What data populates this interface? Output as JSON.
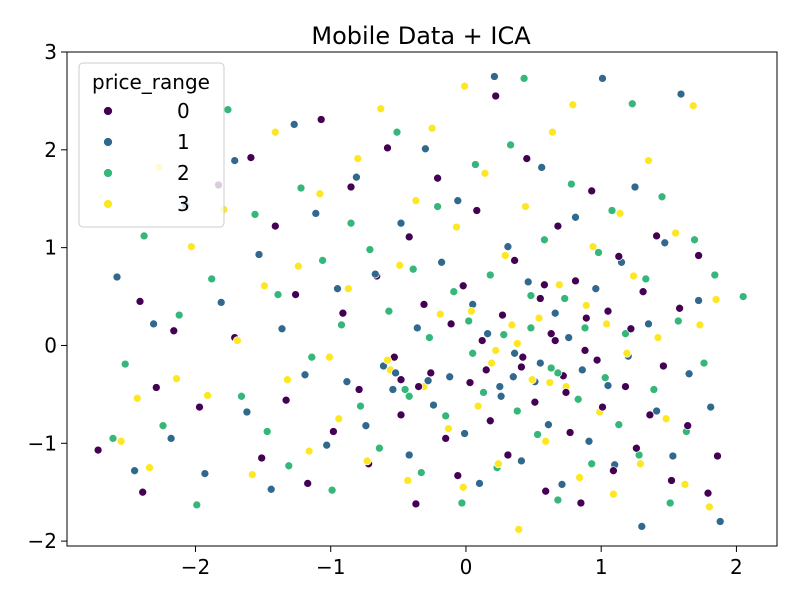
{
  "chart_data": {
    "type": "scatter",
    "title": "Mobile Data + ICA",
    "xlabel": "",
    "ylabel": "",
    "xlim": [
      -2.95,
      2.3
    ],
    "ylim": [
      -2.05,
      3.0
    ],
    "xticks": [
      -2,
      -1,
      0,
      1,
      2
    ],
    "yticks": [
      -2,
      -1,
      0,
      1,
      2,
      3
    ],
    "xtick_labels": [
      "−2",
      "−1",
      "0",
      "1",
      "2"
    ],
    "ytick_labels": [
      "−2",
      "−1",
      "0",
      "1",
      "2",
      "3"
    ],
    "grid": false,
    "legend": {
      "title": "price_range",
      "position": "top-left",
      "entries": [
        "0",
        "1",
        "2",
        "3"
      ]
    },
    "colors": {
      "0": "#440154",
      "1": "#31688e",
      "2": "#35b779",
      "3": "#fde725"
    },
    "series": [
      {
        "name": "0",
        "points": [
          [
            -2.72,
            -1.07
          ],
          [
            -2.41,
            0.45
          ],
          [
            -2.39,
            -1.5
          ],
          [
            -2.29,
            -0.43
          ],
          [
            -2.16,
            0.15
          ],
          [
            -1.97,
            -0.63
          ],
          [
            -1.83,
            1.64
          ],
          [
            -1.71,
            0.08
          ],
          [
            -1.59,
            1.92
          ],
          [
            -1.51,
            -1.15
          ],
          [
            -1.41,
            1.22
          ],
          [
            -1.33,
            -0.56
          ],
          [
            -1.26,
            0.52
          ],
          [
            -1.17,
            -1.41
          ],
          [
            -1.07,
            2.31
          ],
          [
            -0.98,
            -0.88
          ],
          [
            -0.91,
            0.33
          ],
          [
            -0.85,
            1.62
          ],
          [
            -0.79,
            -0.45
          ],
          [
            -0.72,
            -1.21
          ],
          [
            -0.66,
            0.71
          ],
          [
            -0.58,
            2.02
          ],
          [
            -0.53,
            -0.12
          ],
          [
            -0.48,
            -0.71
          ],
          [
            -0.42,
            1.11
          ],
          [
            -0.37,
            -1.62
          ],
          [
            -0.31,
            0.42
          ],
          [
            -0.26,
            -0.28
          ],
          [
            -0.21,
            1.71
          ],
          [
            -0.15,
            -0.95
          ],
          [
            -0.11,
            0.22
          ],
          [
            -0.06,
            -1.33
          ],
          [
            -0.02,
            0.61
          ],
          [
            0.03,
            -0.38
          ],
          [
            0.08,
            1.38
          ],
          [
            0.12,
            0.05
          ],
          [
            0.18,
            -0.77
          ],
          [
            0.22,
            2.55
          ],
          [
            0.27,
            0.31
          ],
          [
            0.31,
            -1.12
          ],
          [
            0.36,
            0.87
          ],
          [
            0.41,
            -0.22
          ],
          [
            0.45,
            1.91
          ],
          [
            0.51,
            -0.58
          ],
          [
            0.55,
            0.48
          ],
          [
            0.59,
            -1.49
          ],
          [
            0.63,
            0.12
          ],
          [
            0.68,
            1.22
          ],
          [
            0.72,
            -0.31
          ],
          [
            0.77,
            -0.89
          ],
          [
            0.81,
            0.66
          ],
          [
            0.85,
            -1.61
          ],
          [
            0.89,
            0.28
          ],
          [
            0.93,
            1.58
          ],
          [
            0.97,
            -0.15
          ],
          [
            1.01,
            -0.63
          ],
          [
            1.05,
            0.35
          ],
          [
            1.09,
            -1.28
          ],
          [
            1.13,
            0.91
          ],
          [
            1.18,
            -0.42
          ],
          [
            1.22,
            0.17
          ],
          [
            1.26,
            -1.05
          ],
          [
            1.31,
            0.55
          ],
          [
            1.36,
            -0.71
          ],
          [
            1.41,
            1.12
          ],
          [
            1.46,
            -0.21
          ],
          [
            1.52,
            -1.38
          ],
          [
            1.58,
            0.38
          ],
          [
            1.64,
            -0.82
          ],
          [
            1.72,
            0.92
          ],
          [
            1.79,
            -1.51
          ],
          [
            1.86,
            -1.13
          ],
          [
            0.58,
            0.62
          ],
          [
            0.66,
            0.05
          ],
          [
            0.74,
            -0.48
          ],
          [
            0.88,
            -0.05
          ],
          [
            -0.48,
            -0.35
          ],
          [
            -0.35,
            -0.42
          ],
          [
            0.15,
            -0.25
          ],
          [
            0.42,
            -0.12
          ]
        ]
      },
      {
        "name": "1",
        "points": [
          [
            -2.58,
            0.7
          ],
          [
            -2.45,
            -1.28
          ],
          [
            -2.31,
            0.22
          ],
          [
            -2.18,
            -0.95
          ],
          [
            -2.07,
            1.43
          ],
          [
            -1.93,
            -1.31
          ],
          [
            -1.81,
            0.44
          ],
          [
            -1.71,
            1.89
          ],
          [
            -1.62,
            -0.68
          ],
          [
            -1.53,
            0.93
          ],
          [
            -1.44,
            -1.47
          ],
          [
            -1.36,
            0.17
          ],
          [
            -1.27,
            2.26
          ],
          [
            -1.19,
            -0.3
          ],
          [
            -1.11,
            1.35
          ],
          [
            -1.03,
            -1.02
          ],
          [
            -0.95,
            0.58
          ],
          [
            -0.88,
            -0.37
          ],
          [
            -0.81,
            1.72
          ],
          [
            -0.74,
            -0.82
          ],
          [
            -0.67,
            0.73
          ],
          [
            -0.61,
            -0.21
          ],
          [
            -0.54,
            -0.45
          ],
          [
            -0.48,
            1.25
          ],
          [
            -0.42,
            -1.12
          ],
          [
            -0.36,
            0.18
          ],
          [
            -0.3,
            2.01
          ],
          [
            -0.24,
            -0.61
          ],
          [
            -0.18,
            0.85
          ],
          [
            -0.12,
            -0.32
          ],
          [
            -0.06,
            1.48
          ],
          [
            -0.01,
            -0.9
          ],
          [
            0.05,
            0.42
          ],
          [
            0.1,
            -1.41
          ],
          [
            0.16,
            0.12
          ],
          [
            0.21,
            2.75
          ],
          [
            0.26,
            -0.52
          ],
          [
            0.31,
            1.01
          ],
          [
            0.36,
            -0.08
          ],
          [
            0.41,
            -1.18
          ],
          [
            0.46,
            0.65
          ],
          [
            0.51,
            -0.37
          ],
          [
            0.56,
            1.82
          ],
          [
            0.61,
            -0.81
          ],
          [
            0.66,
            0.33
          ],
          [
            0.71,
            -1.42
          ],
          [
            0.76,
            0.08
          ],
          [
            0.81,
            1.31
          ],
          [
            0.86,
            -0.25
          ],
          [
            0.91,
            -0.98
          ],
          [
            0.96,
            0.58
          ],
          [
            1.01,
            2.73
          ],
          [
            1.05,
            -0.41
          ],
          [
            1.1,
            -1.22
          ],
          [
            1.15,
            0.85
          ],
          [
            1.2,
            -0.11
          ],
          [
            1.25,
            1.62
          ],
          [
            1.3,
            -1.85
          ],
          [
            1.35,
            0.22
          ],
          [
            1.41,
            -0.67
          ],
          [
            1.47,
            1.05
          ],
          [
            1.53,
            -1.13
          ],
          [
            1.59,
            2.57
          ],
          [
            1.65,
            -0.29
          ],
          [
            1.72,
            0.46
          ],
          [
            1.81,
            -0.63
          ],
          [
            1.88,
            -1.8
          ],
          [
            0.35,
            -0.32
          ],
          [
            0.55,
            -0.18
          ],
          [
            -0.52,
            -0.28
          ],
          [
            -0.28,
            -0.36
          ],
          [
            0.25,
            -0.42
          ]
        ]
      },
      {
        "name": "2",
        "points": [
          [
            -2.61,
            -0.95
          ],
          [
            -2.52,
            -0.19
          ],
          [
            -2.38,
            1.12
          ],
          [
            -2.24,
            -0.82
          ],
          [
            -2.12,
            0.31
          ],
          [
            -1.99,
            -1.63
          ],
          [
            -1.88,
            0.68
          ],
          [
            -1.76,
            2.41
          ],
          [
            -1.66,
            -0.52
          ],
          [
            -1.56,
            1.34
          ],
          [
            -1.47,
            -0.88
          ],
          [
            -1.39,
            0.52
          ],
          [
            -1.31,
            -1.23
          ],
          [
            -1.22,
            1.61
          ],
          [
            -1.14,
            -0.12
          ],
          [
            -1.06,
            0.87
          ],
          [
            -0.99,
            -1.48
          ],
          [
            -0.92,
            0.21
          ],
          [
            -0.85,
            1.25
          ],
          [
            -0.78,
            -0.62
          ],
          [
            -0.71,
            0.98
          ],
          [
            -0.64,
            -1.05
          ],
          [
            -0.57,
            0.35
          ],
          [
            -0.51,
            2.18
          ],
          [
            -0.45,
            -0.45
          ],
          [
            -0.39,
            0.78
          ],
          [
            -0.33,
            -1.3
          ],
          [
            -0.27,
            0.08
          ],
          [
            -0.21,
            1.42
          ],
          [
            -0.15,
            -0.72
          ],
          [
            -0.09,
            0.55
          ],
          [
            -0.03,
            -1.61
          ],
          [
            0.02,
            0.25
          ],
          [
            0.07,
            1.85
          ],
          [
            0.13,
            -0.48
          ],
          [
            0.18,
            0.72
          ],
          [
            0.23,
            -1.25
          ],
          [
            0.28,
            0.11
          ],
          [
            0.33,
            2.05
          ],
          [
            0.38,
            -0.67
          ],
          [
            0.43,
            2.73
          ],
          [
            0.48,
            0.51
          ],
          [
            0.53,
            -0.91
          ],
          [
            0.58,
            1.08
          ],
          [
            0.63,
            -0.23
          ],
          [
            0.68,
            -1.58
          ],
          [
            0.73,
            0.48
          ],
          [
            0.78,
            1.65
          ],
          [
            0.83,
            -0.55
          ],
          [
            0.88,
            0.18
          ],
          [
            0.93,
            -1.21
          ],
          [
            0.98,
            0.95
          ],
          [
            1.03,
            -0.33
          ],
          [
            1.08,
            1.38
          ],
          [
            1.13,
            -0.81
          ],
          [
            1.18,
            0.12
          ],
          [
            1.23,
            2.47
          ],
          [
            1.28,
            -1.12
          ],
          [
            1.33,
            0.68
          ],
          [
            1.39,
            -0.45
          ],
          [
            1.45,
            1.52
          ],
          [
            1.51,
            -1.61
          ],
          [
            1.57,
            0.25
          ],
          [
            1.63,
            -0.88
          ],
          [
            1.69,
            1.08
          ],
          [
            1.76,
            -0.18
          ],
          [
            1.84,
            0.72
          ],
          [
            2.05,
            0.5
          ],
          [
            0.48,
            0.18
          ],
          [
            0.68,
            -0.28
          ],
          [
            -0.42,
            -0.52
          ],
          [
            0.05,
            -0.08
          ]
        ]
      },
      {
        "name": "3",
        "points": [
          [
            -2.55,
            -0.98
          ],
          [
            -2.43,
            -0.54
          ],
          [
            -2.34,
            -1.25
          ],
          [
            -2.27,
            1.82
          ],
          [
            -2.14,
            -0.34
          ],
          [
            -2.03,
            1.01
          ],
          [
            -1.91,
            -0.51
          ],
          [
            -1.79,
            1.39
          ],
          [
            -1.69,
            0.05
          ],
          [
            -1.58,
            -1.32
          ],
          [
            -1.49,
            0.61
          ],
          [
            -1.41,
            2.18
          ],
          [
            -1.32,
            -0.35
          ],
          [
            -1.24,
            0.81
          ],
          [
            -1.16,
            -1.08
          ],
          [
            -1.08,
            1.55
          ],
          [
            -1.01,
            -0.12
          ],
          [
            -0.94,
            -0.75
          ],
          [
            -0.87,
            0.58
          ],
          [
            -0.8,
            1.91
          ],
          [
            -0.73,
            -1.18
          ],
          [
            -0.63,
            2.42
          ],
          [
            -0.56,
            -0.25
          ],
          [
            -0.49,
            0.82
          ],
          [
            -0.43,
            -1.38
          ],
          [
            -0.37,
            1.48
          ],
          [
            -0.31,
            -0.42
          ],
          [
            -0.25,
            2.22
          ],
          [
            -0.19,
            0.32
          ],
          [
            -0.13,
            -0.85
          ],
          [
            -0.07,
            1.21
          ],
          [
            -0.02,
            -1.45
          ],
          [
            0.04,
            0.35
          ],
          [
            0.09,
            -0.62
          ],
          [
            0.14,
            1.76
          ],
          [
            0.19,
            -0.18
          ],
          [
            0.24,
            -1.21
          ],
          [
            0.29,
            0.92
          ],
          [
            0.34,
            0.21
          ],
          [
            0.39,
            -1.88
          ],
          [
            0.44,
            1.42
          ],
          [
            0.49,
            -0.35
          ],
          [
            0.54,
            0.28
          ],
          [
            0.59,
            -0.98
          ],
          [
            0.64,
            2.18
          ],
          [
            0.69,
            0.62
          ],
          [
            0.74,
            -0.42
          ],
          [
            0.79,
            2.46
          ],
          [
            0.84,
            -1.35
          ],
          [
            0.89,
            0.41
          ],
          [
            0.94,
            1.01
          ],
          [
            0.99,
            -0.68
          ],
          [
            1.04,
            0.22
          ],
          [
            1.09,
            -1.52
          ],
          [
            1.14,
            1.35
          ],
          [
            1.19,
            -0.08
          ],
          [
            1.24,
            0.71
          ],
          [
            1.29,
            -1.21
          ],
          [
            1.35,
            1.89
          ],
          [
            1.42,
            0.08
          ],
          [
            1.48,
            -0.75
          ],
          [
            1.55,
            1.15
          ],
          [
            1.62,
            -1.42
          ],
          [
            1.68,
            2.45
          ],
          [
            1.73,
            0.21
          ],
          [
            1.8,
            -1.65
          ],
          [
            1.85,
            0.47
          ],
          [
            -0.01,
            2.65
          ],
          [
            0.22,
            -0.05
          ],
          [
            0.62,
            -0.38
          ],
          [
            -0.58,
            -0.15
          ],
          [
            0.38,
            0.02
          ]
        ]
      }
    ]
  }
}
